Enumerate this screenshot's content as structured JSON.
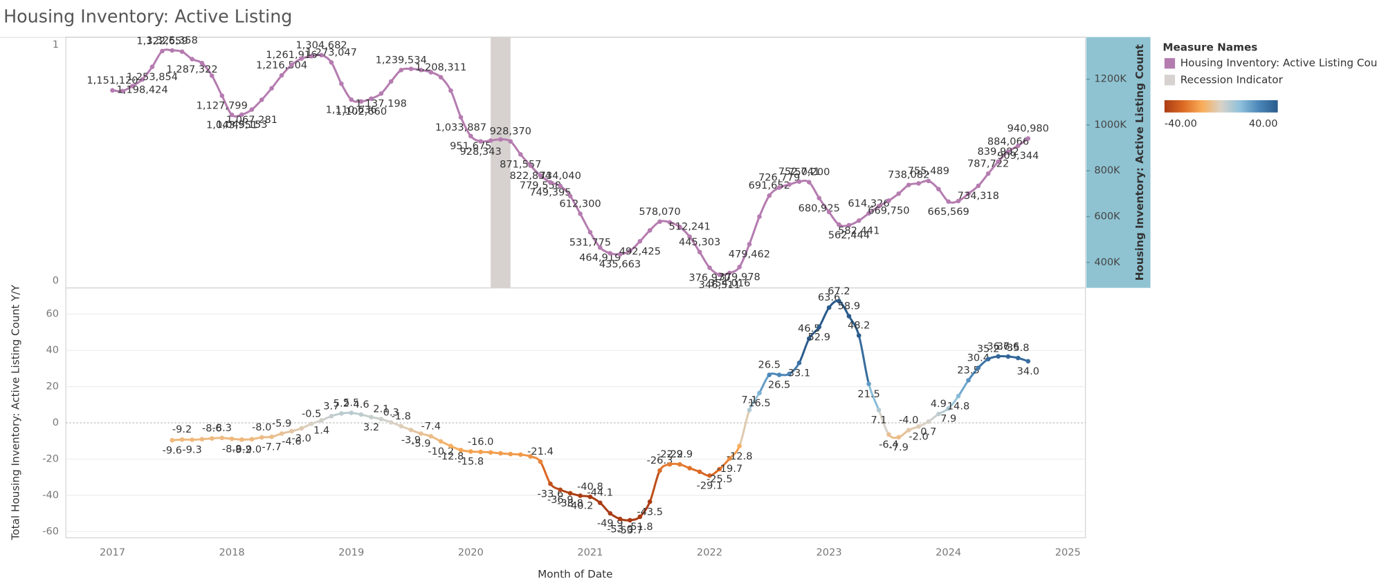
{
  "chart_data": [
    {
      "type": "line",
      "title": "Housing Inventory: Active Listing",
      "x": [
        2017,
        2017.083,
        2017.167,
        2017.25,
        2017.333,
        2017.417,
        2017.5,
        2017.583,
        2017.667,
        2017.75,
        2017.833,
        2017.917,
        2018,
        2018.083,
        2018.167,
        2018.25,
        2018.333,
        2018.417,
        2018.5,
        2018.583,
        2018.667,
        2018.75,
        2018.833,
        2018.917,
        2019,
        2019.083,
        2019.167,
        2019.25,
        2019.333,
        2019.417,
        2019.5,
        2019.583,
        2019.667,
        2019.75,
        2019.833,
        2019.917,
        2020,
        2020.083,
        2020.167,
        2020.25,
        2020.333,
        2020.417,
        2020.5,
        2020.583,
        2020.667,
        2020.75,
        2020.833,
        2020.917,
        2021,
        2021.083,
        2021.167,
        2021.25,
        2021.333,
        2021.417,
        2021.5,
        2021.583,
        2021.667,
        2021.75,
        2021.833,
        2021.917,
        2022,
        2022.083,
        2022.167,
        2022.25,
        2022.333,
        2022.417,
        2022.5,
        2022.583,
        2022.667,
        2022.75,
        2022.833,
        2022.917,
        2023,
        2023.083,
        2023.167,
        2023.25,
        2023.333,
        2023.417,
        2023.5,
        2023.583,
        2023.667,
        2023.75,
        2023.833,
        2023.917,
        2024,
        2024.083,
        2024.167,
        2024.25,
        2024.333,
        2024.417,
        2024.5,
        2024.583,
        2024.667
      ],
      "xlim": [
        2016.61,
        2025.147
      ],
      "ylim": [
        0,
        1
      ],
      "yticks": [
        0,
        1
      ],
      "y2lim": [
        289000,
        1383700
      ],
      "y2ticks": [
        {
          "value": 400000,
          "label": "400K"
        },
        {
          "value": 600000,
          "label": "600K"
        },
        {
          "value": 800000,
          "label": "800K"
        },
        {
          "value": 1000000,
          "label": "1000K"
        },
        {
          "value": 1200000,
          "label": "1200K"
        }
      ],
      "y2label": "Housing Inventory: Active Listing Count",
      "legend": {
        "title": "Measure Names",
        "position": "right"
      },
      "series": [
        {
          "name": "Housing Inventory: Active Listing Count",
          "color": "#b57cb0",
          "axis": "y2",
          "values": [
            1151120,
            1148000,
            1170000,
            1198424,
            1253854,
            1322659,
            1325358,
            1320000,
            1287322,
            1270000,
            1215000,
            1127799,
            1043951,
            1045153,
            1067281,
            1110000,
            1160000,
            1216504,
            1261916,
            1290000,
            1300000,
            1304682,
            1273047,
            1180000,
            1110636,
            1102660,
            1115000,
            1137198,
            1190000,
            1239534,
            1245000,
            1240000,
            1230000,
            1208311,
            1150000,
            1033887,
            951675,
            928343,
            932000,
            937000,
            928370,
            871557,
            822834,
            779558,
            749395,
            734040,
            690000,
            612300,
            531775,
            464919,
            440000,
            435663,
            450000,
            492425,
            540000,
            578070,
            575000,
            555000,
            512241,
            445303,
            376970,
            346511,
            354016,
            379978,
            479462,
            600000,
            691652,
            726779,
            740000,
            752741,
            750200,
            680925,
            620000,
            565000,
            562444,
            582441,
            614326,
            645000,
            669750,
            700000,
            738082,
            745000,
            755489,
            720000,
            665569,
            668000,
            700000,
            734318,
            787722,
            839992,
            884066,
            909344,
            940980
          ],
          "value_labels": [
            "1,151,120",
            null,
            null,
            "1,198,424",
            "1,253,854",
            "1,322,659",
            "1,325,358",
            null,
            "1,287,322",
            null,
            null,
            "1,127,799",
            "1,043,951",
            "1,045,153",
            "1,067,281",
            null,
            null,
            "1,216,504",
            "1,261,916",
            null,
            null,
            "1,304,682",
            "1,273,047",
            null,
            "1,110,636",
            "1,102,660",
            null,
            "1,137,198",
            null,
            "1,239,534",
            null,
            null,
            null,
            "1,208,311",
            null,
            "1,033,887",
            "951,675",
            "928,343",
            null,
            null,
            "928,370",
            "871,557",
            "822,834",
            "779,558",
            "749,395",
            "734,040",
            null,
            "612,300",
            "531,775",
            "464,919",
            null,
            "435,663",
            null,
            "492,425",
            null,
            "578,070",
            null,
            null,
            "512,241",
            "445,303",
            "376,970",
            "346,511",
            "354,016",
            "379,978",
            "479,462",
            null,
            "691,652",
            "726,779",
            null,
            "752,741",
            "750,200",
            "680,925",
            null,
            null,
            "562,444",
            "582,441",
            "614,326",
            null,
            "669,750",
            null,
            "738,082",
            null,
            "755,489",
            null,
            "665,569",
            null,
            null,
            "734,318",
            "787,722",
            "839,992",
            "884,066",
            "909,344",
            "940,980"
          ]
        }
      ],
      "recession": {
        "name": "Recession Indicator",
        "color": "#d7d2d0",
        "x": [
          2020.167,
          2020.333
        ],
        "value": 1
      }
    },
    {
      "type": "line",
      "x": [
        2017.5,
        2017.583,
        2017.667,
        2017.75,
        2017.833,
        2017.917,
        2018,
        2018.083,
        2018.167,
        2018.25,
        2018.333,
        2018.417,
        2018.5,
        2018.583,
        2018.667,
        2018.75,
        2018.833,
        2018.917,
        2019,
        2019.083,
        2019.167,
        2019.25,
        2019.333,
        2019.417,
        2019.5,
        2019.583,
        2019.667,
        2019.75,
        2019.833,
        2019.917,
        2020,
        2020.083,
        2020.167,
        2020.25,
        2020.333,
        2020.417,
        2020.5,
        2020.583,
        2020.667,
        2020.75,
        2020.833,
        2020.917,
        2021,
        2021.083,
        2021.167,
        2021.25,
        2021.333,
        2021.417,
        2021.5,
        2021.583,
        2021.667,
        2021.75,
        2021.833,
        2021.917,
        2022,
        2022.083,
        2022.167,
        2022.25,
        2022.333,
        2022.417,
        2022.5,
        2022.583,
        2022.667,
        2022.75,
        2022.833,
        2022.917,
        2023,
        2023.083,
        2023.167,
        2023.25,
        2023.333,
        2023.417,
        2023.5,
        2023.583,
        2023.667,
        2023.75,
        2023.833,
        2023.917,
        2024,
        2024.083,
        2024.167,
        2024.25,
        2024.333,
        2024.417,
        2024.5,
        2024.583,
        2024.667
      ],
      "xlim": [
        2016.61,
        2025.147
      ],
      "xticks": [
        2017,
        2018,
        2019,
        2020,
        2021,
        2022,
        2023,
        2024,
        2025
      ],
      "xlabel": "Month of Date",
      "ylim": [
        -63.4,
        74.5
      ],
      "yticks": [
        -60,
        -40,
        -20,
        0,
        20,
        40,
        60
      ],
      "ylabel": "Total Housing Inventory: Active Listing Count Y/Y",
      "grid": true,
      "color_scale": {
        "min": {
          "value": -40,
          "label": "-40.00"
        },
        "max": {
          "value": 40,
          "label": "40.00"
        },
        "colors": [
          "#a93c14",
          "#dd6a24",
          "#f9ad5a",
          "#d8d2c8",
          "#8fc1dc",
          "#4b86b8",
          "#2a5b8c"
        ]
      },
      "values": [
        -9.6,
        -9.2,
        -9.3,
        -9.0,
        -8.6,
        -8.3,
        -8.8,
        -9.2,
        -9.0,
        -8.0,
        -7.7,
        -5.9,
        -4.6,
        -3.0,
        -0.5,
        1.4,
        3.7,
        5.2,
        5.5,
        4.6,
        3.2,
        2.1,
        0.3,
        -1.8,
        -3.9,
        -5.9,
        -7.4,
        -10.2,
        -12.8,
        -15.0,
        -15.8,
        -16.0,
        -16.3,
        -16.8,
        -17.2,
        -17.5,
        -18.5,
        -21.4,
        -33.6,
        -36.9,
        -38.8,
        -40.2,
        -40.8,
        -44.1,
        -49.9,
        -53.0,
        -53.7,
        -51.8,
        -43.5,
        -26.3,
        -22.9,
        -22.9,
        -25.0,
        -27.0,
        -29.1,
        -25.5,
        -19.7,
        -12.8,
        7.1,
        16.5,
        26.5,
        26.5,
        27.0,
        33.1,
        46.5,
        52.9,
        63.6,
        67.2,
        58.9,
        48.2,
        21.5,
        7.1,
        -6.4,
        -7.9,
        -4.0,
        -2.0,
        0.7,
        4.9,
        7.9,
        14.8,
        23.5,
        30.4,
        35.2,
        36.7,
        36.6,
        35.8,
        34.0
      ],
      "value_labels": [
        "-9.6",
        "-9.2",
        "-9.3",
        null,
        "-8.6",
        "-8.3",
        "-8.8",
        "-9.2",
        "-9.0",
        "-8.0",
        "-7.7",
        "-5.9",
        "-4.6",
        "-3.0",
        "-0.5",
        "1.4",
        "3.7",
        "5.2",
        "5.5",
        "4.6",
        "3.2",
        "2.1",
        "0.3",
        "-1.8",
        "-3.9",
        "-5.9",
        "-7.4",
        "-10.2",
        "-12.8",
        null,
        "-15.8",
        "-16.0",
        null,
        null,
        null,
        null,
        null,
        "-21.4",
        "-33.6",
        "-36.9",
        "-38.8",
        "-40.2",
        "-40.8",
        "-44.1",
        "-49.9",
        "-53.0",
        "-53.7",
        "-51.8",
        "-43.5",
        "-26.3",
        "-22.9",
        "-22.9",
        null,
        null,
        "-29.1",
        "-25.5",
        "-19.7",
        "-12.8",
        "7.1",
        "16.5",
        "26.5",
        "26.5",
        null,
        "33.1",
        "46.5",
        "52.9",
        "63.6",
        "67.2",
        "58.9",
        "48.2",
        "21.5",
        "7.1",
        "-6.4",
        "-7.9",
        "-4.0",
        "-2.0",
        "0.7",
        "4.9",
        "7.9",
        "14.8",
        "23.5",
        "30.4",
        "35.2",
        "36.7",
        "36.6",
        "35.8",
        "34.0"
      ]
    }
  ]
}
